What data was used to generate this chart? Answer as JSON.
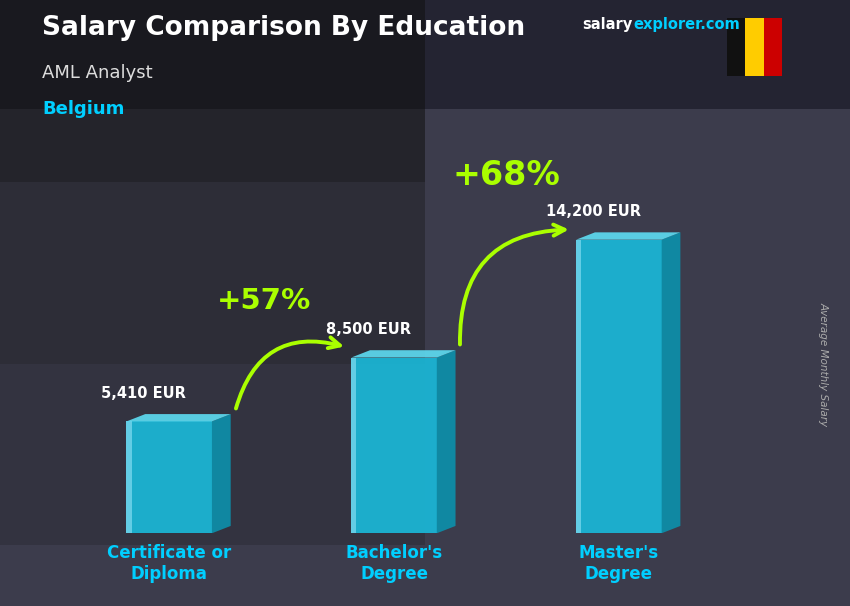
{
  "title": "Salary Comparison By Education",
  "subtitle": "AML Analyst",
  "country": "Belgium",
  "categories": [
    "Certificate or\nDiploma",
    "Bachelor's\nDegree",
    "Master's\nDegree"
  ],
  "values": [
    5410,
    8500,
    14200
  ],
  "value_labels": [
    "5,410 EUR",
    "8,500 EUR",
    "14,200 EUR"
  ],
  "pct_labels": [
    "+57%",
    "+68%"
  ],
  "bar_color_front": "#1ab8d8",
  "bar_color_top": "#5ddaf0",
  "bar_color_side": "#0d8faa",
  "bar_color_highlight": "#aaeeff",
  "bg_color": "#3a3a4a",
  "title_color": "#ffffff",
  "subtitle_color": "#dddddd",
  "country_color": "#00cfff",
  "value_color": "#ffffff",
  "pct_color": "#aaff00",
  "axis_label_color": "#00cfff",
  "ylabel_color": "#aaaaaa",
  "brand_color_salary": "#ffffff",
  "brand_color_explorer": "#00cfff",
  "ylabel": "Average Monthly Salary",
  "figsize": [
    8.5,
    6.06
  ],
  "dpi": 100,
  "ylim": [
    0,
    17000
  ],
  "bar_width": 0.38,
  "bar_positions": [
    1.0,
    2.0,
    3.0
  ],
  "flag_colors": [
    "#111111",
    "#FFCC00",
    "#CC0000"
  ],
  "arrow_color": "#aaff00"
}
